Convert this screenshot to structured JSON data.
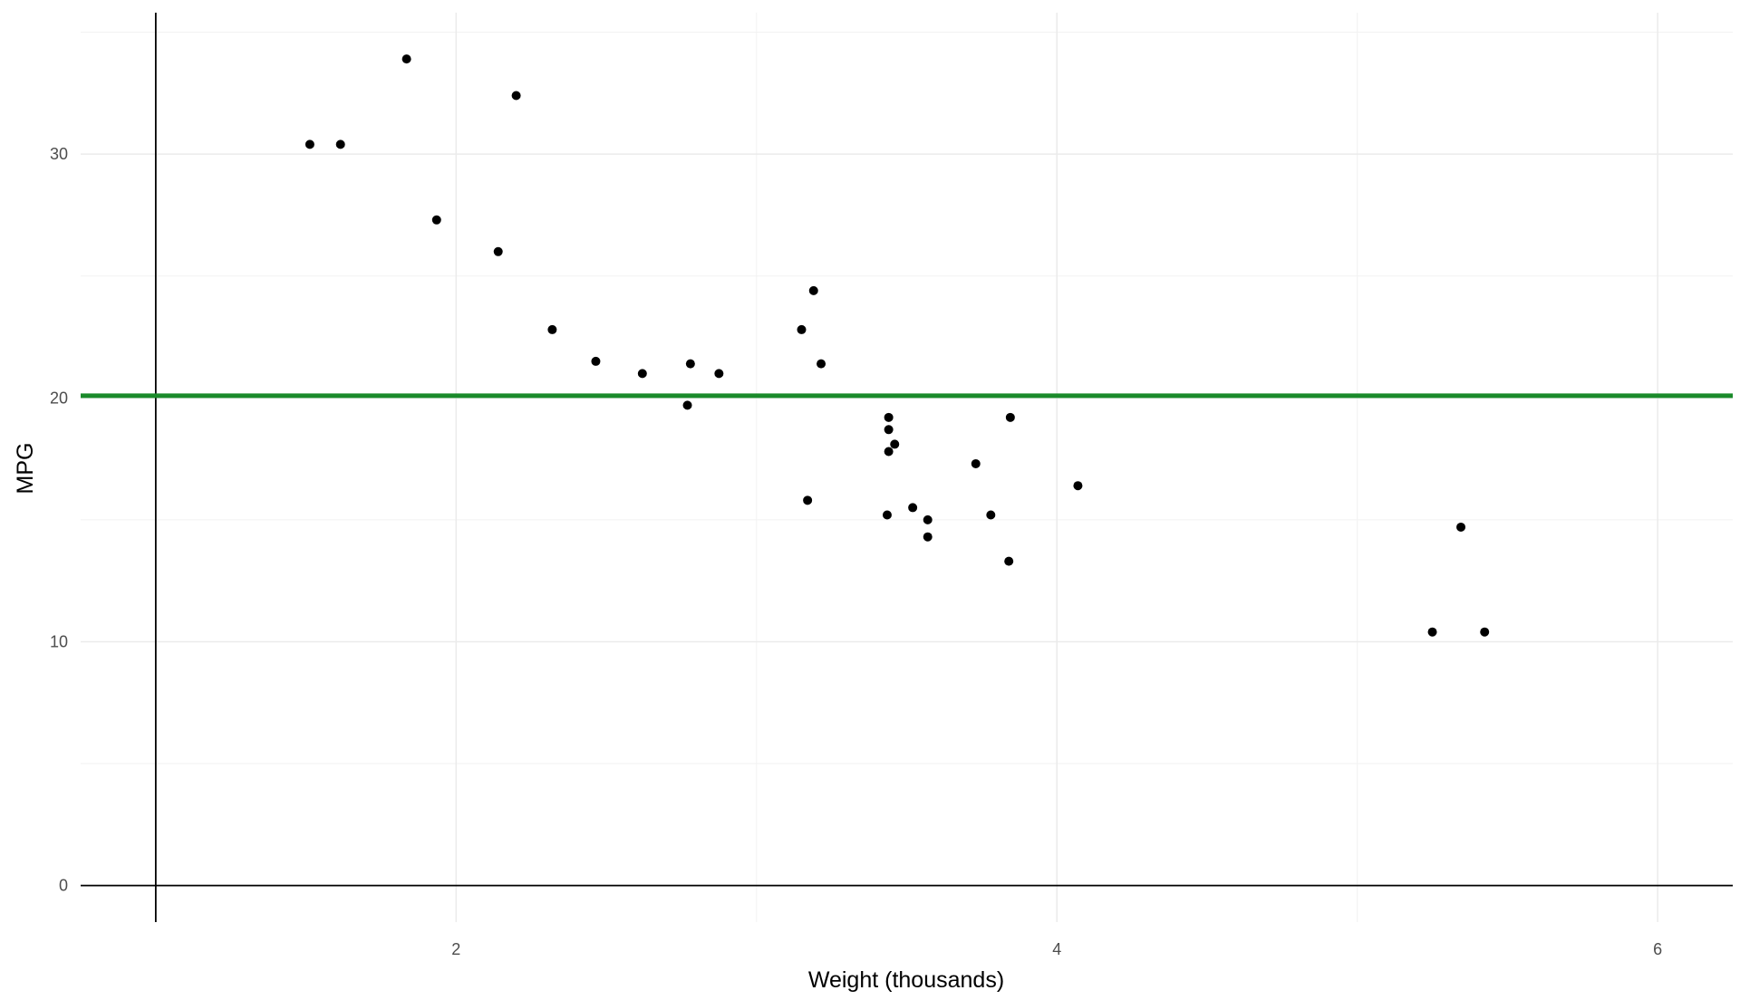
{
  "chart_data": {
    "type": "scatter",
    "title": "",
    "xlabel": "Weight (thousands)",
    "ylabel": "MPG",
    "xlim": [
      0.75,
      6.25
    ],
    "ylim": [
      -1.5,
      35.8
    ],
    "x_ticks": [
      2,
      4,
      6
    ],
    "y_ticks": [
      0,
      10,
      20,
      30
    ],
    "x_minor_gridlines": [
      1,
      3,
      5
    ],
    "y_minor_gridlines": [
      5,
      15,
      25,
      35
    ],
    "grid": true,
    "legend": "none",
    "reference_lines": [
      {
        "orientation": "vertical",
        "x": 1,
        "color": "#000000"
      },
      {
        "orientation": "horizontal",
        "y": 0,
        "color": "#000000"
      },
      {
        "orientation": "horizontal",
        "y": 20.09,
        "color": "#1a8a2a"
      }
    ],
    "point_color": "#000000",
    "series": [
      {
        "points": [
          {
            "x": 2.62,
            "y": 21.0
          },
          {
            "x": 2.875,
            "y": 21.0
          },
          {
            "x": 2.32,
            "y": 22.8
          },
          {
            "x": 3.215,
            "y": 21.4
          },
          {
            "x": 3.44,
            "y": 18.7
          },
          {
            "x": 3.46,
            "y": 18.1
          },
          {
            "x": 3.57,
            "y": 14.3
          },
          {
            "x": 3.19,
            "y": 24.4
          },
          {
            "x": 3.15,
            "y": 22.8
          },
          {
            "x": 3.44,
            "y": 19.2
          },
          {
            "x": 3.44,
            "y": 17.8
          },
          {
            "x": 4.07,
            "y": 16.4
          },
          {
            "x": 3.73,
            "y": 17.3
          },
          {
            "x": 3.78,
            "y": 15.2
          },
          {
            "x": 5.25,
            "y": 10.4
          },
          {
            "x": 5.424,
            "y": 10.4
          },
          {
            "x": 5.345,
            "y": 14.7
          },
          {
            "x": 2.2,
            "y": 32.4
          },
          {
            "x": 1.615,
            "y": 30.4
          },
          {
            "x": 1.835,
            "y": 33.9
          },
          {
            "x": 2.465,
            "y": 21.5
          },
          {
            "x": 3.52,
            "y": 15.5
          },
          {
            "x": 3.435,
            "y": 15.2
          },
          {
            "x": 3.84,
            "y": 13.3
          },
          {
            "x": 3.845,
            "y": 19.2
          },
          {
            "x": 1.935,
            "y": 27.3
          },
          {
            "x": 2.14,
            "y": 26.0
          },
          {
            "x": 1.513,
            "y": 30.4
          },
          {
            "x": 3.17,
            "y": 15.8
          },
          {
            "x": 2.77,
            "y": 19.7
          },
          {
            "x": 3.57,
            "y": 15.0
          },
          {
            "x": 2.78,
            "y": 21.4
          }
        ]
      }
    ]
  }
}
